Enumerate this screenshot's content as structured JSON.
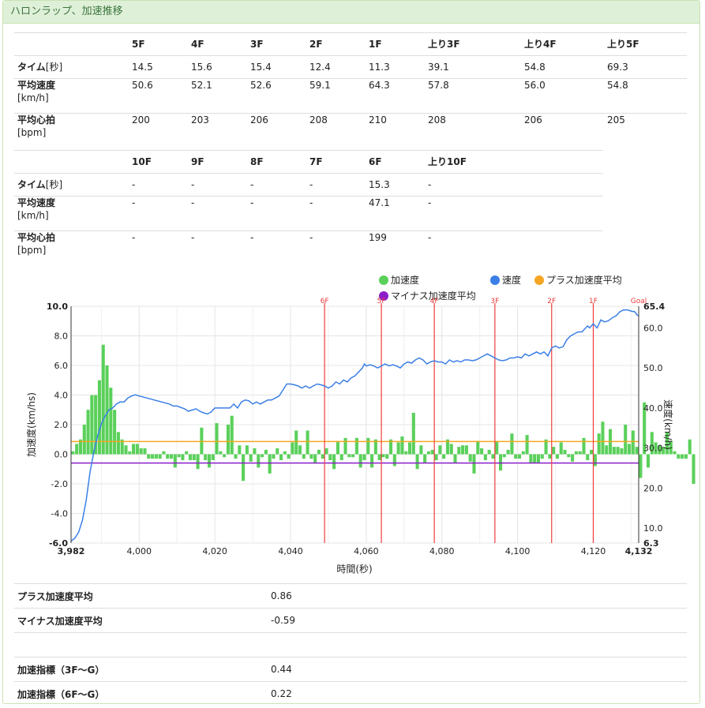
{
  "panel": {
    "title": "ハロンラップ、加速推移"
  },
  "lap_table_1": {
    "headers": [
      "5F",
      "4F",
      "3F",
      "2F",
      "1F",
      "上り3F",
      "上り4F",
      "上り5F"
    ],
    "rows": [
      {
        "label": "タイム",
        "unit": "[秒]",
        "values": [
          "14.5",
          "15.6",
          "15.4",
          "12.4",
          "11.3",
          "39.1",
          "54.8",
          "69.3"
        ]
      },
      {
        "label": "平均速度",
        "unit": "[km/h]",
        "values": [
          "50.6",
          "52.1",
          "52.6",
          "59.1",
          "64.3",
          "57.8",
          "56.0",
          "54.8"
        ]
      },
      {
        "label": "平均心拍",
        "unit": "[bpm]",
        "values": [
          "200",
          "203",
          "206",
          "208",
          "210",
          "208",
          "206",
          "205"
        ]
      }
    ]
  },
  "lap_table_2": {
    "headers": [
      "10F",
      "9F",
      "8F",
      "7F",
      "6F",
      "上り10F"
    ],
    "rows": [
      {
        "label": "タイム",
        "unit": "[秒]",
        "values": [
          "-",
          "-",
          "-",
          "-",
          "15.3",
          "-"
        ]
      },
      {
        "label": "平均速度",
        "unit": "[km/h]",
        "values": [
          "-",
          "-",
          "-",
          "-",
          "47.1",
          "-"
        ]
      },
      {
        "label": "平均心拍",
        "unit": "[bpm]",
        "values": [
          "-",
          "-",
          "-",
          "-",
          "199",
          "-"
        ]
      }
    ]
  },
  "chart_data": {
    "type": "bar",
    "xlabel": "時間(秒)",
    "ylabel_left": "加速度(km/hs)",
    "ylabel_right": "速度(km/h)",
    "xlim": [
      3982,
      4132
    ],
    "x_ticks": [
      "3,982",
      "4,000",
      "4,020",
      "4,040",
      "4,060",
      "4,080",
      "4,100",
      "4,120",
      "4,132"
    ],
    "x_tick_values": [
      3982,
      4000,
      4020,
      4040,
      4060,
      4080,
      4100,
      4120,
      4132
    ],
    "ylim_left": [
      -6.0,
      10.0
    ],
    "y_ticks_left": [
      "-6.0",
      "-4.0",
      "-2.0",
      "0.0",
      "2.0",
      "4.0",
      "6.0",
      "8.0",
      "10.0"
    ],
    "ylim_right": [
      6.3,
      65.4
    ],
    "y_ticks_right": [
      {
        "label": "6.3",
        "value": 6.3
      },
      {
        "label": "10.0",
        "value": 10
      },
      {
        "label": "20.0",
        "value": 20
      },
      {
        "label": "30.0",
        "value": 30
      },
      {
        "label": "40.0",
        "value": 40
      },
      {
        "label": "50.0",
        "value": 50
      },
      {
        "label": "60.0",
        "value": 60
      },
      {
        "label": "65.4",
        "value": 65.4
      }
    ],
    "legend": [
      "加速度",
      "速度",
      "プラス加速度平均",
      "マイナス加速度平均"
    ],
    "colors": {
      "accel": "#5ad05a",
      "speed": "#3b7fe6",
      "plus_avg": "#f5a623",
      "minus_avg": "#8b1fc9",
      "furlong": "#f03c3c"
    },
    "grid": true,
    "furlong_markers": [
      {
        "label": "6F",
        "x": 4049
      },
      {
        "label": "5F",
        "x": 4064
      },
      {
        "label": "4F",
        "x": 4078
      },
      {
        "label": "3F",
        "x": 4094
      },
      {
        "label": "2F",
        "x": 4109
      },
      {
        "label": "1F",
        "x": 4120
      },
      {
        "label": "Goal",
        "x": 4132
      }
    ],
    "plus_accel_avg": 0.86,
    "minus_accel_avg": -0.59,
    "accel_x_start": 3982,
    "accel_values": [
      0.2,
      0.7,
      1.0,
      2.0,
      3.0,
      4.0,
      4.0,
      5.0,
      7.4,
      6.0,
      4.5,
      3.0,
      1.5,
      1.0,
      0.6,
      0.2,
      0.7,
      0.7,
      0.4,
      0.4,
      -0.3,
      -0.3,
      -0.3,
      -0.3,
      0.2,
      -0.3,
      -0.3,
      -0.9,
      -0.2,
      -0.4,
      0.2,
      -0.4,
      -0.4,
      -1.0,
      1.8,
      -0.4,
      -0.9,
      -0.4,
      2.1,
      0.2,
      -0.2,
      2.0,
      2.6,
      -0.3,
      0.6,
      -1.8,
      0.6,
      -0.5,
      0.4,
      -0.9,
      -0.2,
      0.3,
      -1.3,
      -0.3,
      0.4,
      -0.4,
      0.2,
      -0.3,
      0.8,
      1.6,
      0.6,
      -0.3,
      1.6,
      -0.3,
      -0.6,
      0.3,
      -0.3,
      0.4,
      -0.4,
      -1.0,
      0.9,
      -0.4,
      1.1,
      -0.2,
      -0.2,
      1.1,
      -0.9,
      -0.4,
      1.1,
      -0.9,
      1.0,
      -0.4,
      -0.2,
      -0.3,
      1.0,
      -0.8,
      0.8,
      1.2,
      0.2,
      0.8,
      2.8,
      -1.0,
      0.6,
      -0.6,
      0.2,
      0.3,
      -0.4,
      0.6,
      -0.3,
      1.0,
      0.7,
      -0.6,
      0.5,
      0.6,
      0.6,
      -0.5,
      -1.3,
      0.9,
      0.4,
      -0.4,
      0.3,
      -0.3,
      0.9,
      -1.1,
      -0.2,
      0.3,
      1.4,
      -0.3,
      -0.3,
      0.2,
      1.3,
      -0.6,
      -0.6,
      -0.6,
      -0.3,
      1.0,
      -0.3,
      0.5,
      -0.3,
      0.8,
      0.3,
      -0.2,
      -0.5,
      0.2,
      0.2,
      1.1,
      -0.4,
      0.3,
      -0.8,
      1.4,
      2.2,
      0.6,
      1.7,
      0.5,
      0.5,
      0.4,
      2.0,
      0.7,
      1.6,
      0.5,
      -1.6,
      3.5,
      -0.9,
      1.5,
      0.8,
      0.6,
      0.5,
      1.5,
      0.9,
      0.2,
      -0.3,
      -0.3,
      -0.3,
      1.0,
      -2.0
    ],
    "speed_points": [
      [
        3982,
        6.8
      ],
      [
        3983,
        7.5
      ],
      [
        3984,
        9.0
      ],
      [
        3985,
        12.0
      ],
      [
        3986,
        17.0
      ],
      [
        3987,
        24.0
      ],
      [
        3988,
        29.0
      ],
      [
        3989,
        33.0
      ],
      [
        3990,
        36.0
      ],
      [
        3991,
        38.0
      ],
      [
        3992,
        39.5
      ],
      [
        3993,
        40.0
      ],
      [
        3994,
        41.0
      ],
      [
        3995,
        41.5
      ],
      [
        3996,
        41.5
      ],
      [
        3997,
        42.5
      ],
      [
        3998,
        43.0
      ],
      [
        3999,
        43.3
      ],
      [
        4000,
        43.0
      ],
      [
        4002,
        42.5
      ],
      [
        4004,
        42.0
      ],
      [
        4006,
        41.5
      ],
      [
        4008,
        41.0
      ],
      [
        4009,
        40.5
      ],
      [
        4010,
        40.5
      ],
      [
        4012,
        39.8
      ],
      [
        4013,
        39.2
      ],
      [
        4014,
        39.5
      ],
      [
        4015,
        39.8
      ],
      [
        4016,
        39.2
      ],
      [
        4017,
        38.8
      ],
      [
        4018,
        38.5
      ],
      [
        4019,
        39.0
      ],
      [
        4020,
        40.0
      ],
      [
        4022,
        40.0
      ],
      [
        4024,
        40.0
      ],
      [
        4025,
        41.0
      ],
      [
        4026,
        40.0
      ],
      [
        4027,
        41.5
      ],
      [
        4028,
        42.0
      ],
      [
        4029,
        41.8
      ],
      [
        4030,
        41.0
      ],
      [
        4031,
        41.5
      ],
      [
        4032,
        41.0
      ],
      [
        4033,
        41.5
      ],
      [
        4034,
        42.0
      ],
      [
        4035,
        42.0
      ],
      [
        4036,
        42.5
      ],
      [
        4037,
        43.0
      ],
      [
        4038,
        44.5
      ],
      [
        4039,
        46.0
      ],
      [
        4040,
        46.0
      ],
      [
        4041,
        45.8
      ],
      [
        4042,
        45.5
      ],
      [
        4043,
        45.0
      ],
      [
        4044,
        45.5
      ],
      [
        4045,
        45.0
      ],
      [
        4046,
        45.5
      ],
      [
        4047,
        46.0
      ],
      [
        4048,
        45.8
      ],
      [
        4049,
        45.5
      ],
      [
        4050,
        45.0
      ],
      [
        4051,
        45.5
      ],
      [
        4052,
        46.5
      ],
      [
        4053,
        46.0
      ],
      [
        4054,
        47.0
      ],
      [
        4055,
        46.5
      ],
      [
        4056,
        47.5
      ],
      [
        4057,
        48.0
      ],
      [
        4058,
        49.0
      ],
      [
        4059,
        50.0
      ],
      [
        4059.5,
        51.0
      ],
      [
        4060,
        50.5
      ],
      [
        4061,
        50.8
      ],
      [
        4062,
        50.5
      ],
      [
        4063,
        50.0
      ],
      [
        4064,
        50.5
      ],
      [
        4065,
        51.0
      ],
      [
        4066,
        50.5
      ],
      [
        4067,
        50.8
      ],
      [
        4068,
        50.5
      ],
      [
        4069,
        50.0
      ],
      [
        4070,
        51.0
      ],
      [
        4071,
        51.5
      ],
      [
        4072,
        51.2
      ],
      [
        4073,
        52.0
      ],
      [
        4074,
        52.5
      ],
      [
        4075,
        52.0
      ],
      [
        4076,
        51.0
      ],
      [
        4077,
        51.5
      ],
      [
        4078,
        51.8
      ],
      [
        4079,
        51.5
      ],
      [
        4080,
        51.5
      ],
      [
        4081,
        51.0
      ],
      [
        4082,
        52.0
      ],
      [
        4083,
        51.5
      ],
      [
        4084,
        51.8
      ],
      [
        4085,
        51.5
      ],
      [
        4086,
        52.0
      ],
      [
        4087,
        52.0
      ],
      [
        4088,
        51.8
      ],
      [
        4089,
        52.0
      ],
      [
        4090,
        52.5
      ],
      [
        4091,
        53.0
      ],
      [
        4092,
        53.5
      ],
      [
        4093,
        53.0
      ],
      [
        4094,
        52.5
      ],
      [
        4095,
        52.0
      ],
      [
        4096,
        51.8
      ],
      [
        4097,
        52.0
      ],
      [
        4098,
        52.5
      ],
      [
        4099,
        52.5
      ],
      [
        4100,
        52.8
      ],
      [
        4101,
        52.5
      ],
      [
        4102,
        53.5
      ],
      [
        4103,
        53.0
      ],
      [
        4104,
        53.5
      ],
      [
        4105,
        54.0
      ],
      [
        4106,
        53.5
      ],
      [
        4107,
        54.0
      ],
      [
        4108,
        53.0
      ],
      [
        4109,
        55.0
      ],
      [
        4110,
        55.5
      ],
      [
        4111,
        55.0
      ],
      [
        4112,
        55.3
      ],
      [
        4113,
        57.0
      ],
      [
        4114,
        58.0
      ],
      [
        4115,
        58.5
      ],
      [
        4116,
        59.0
      ],
      [
        4117,
        59.0
      ],
      [
        4118,
        60.0
      ],
      [
        4118.5,
        60.5
      ],
      [
        4119,
        60.0
      ],
      [
        4120,
        61.0
      ],
      [
        4121,
        60.0
      ],
      [
        4122,
        62.0
      ],
      [
        4123,
        61.5
      ],
      [
        4124,
        61.8
      ],
      [
        4125,
        62.5
      ],
      [
        4126,
        63.0
      ],
      [
        4127,
        64.0
      ],
      [
        4128,
        64.5
      ],
      [
        4129,
        64.5
      ],
      [
        4130,
        64.2
      ],
      [
        4131,
        64.0
      ],
      [
        4131.5,
        63.3
      ],
      [
        4132,
        63.0
      ]
    ]
  },
  "stats": [
    {
      "label": "プラス加速度平均",
      "value": "0.86"
    },
    {
      "label": "マイナス加速度平均",
      "value": "-0.59"
    },
    {
      "label": "",
      "value": ""
    },
    {
      "label": "加速指標（3F〜G）",
      "value": "0.44"
    },
    {
      "label": "加速指標（6F〜G）",
      "value": "0.22"
    }
  ]
}
